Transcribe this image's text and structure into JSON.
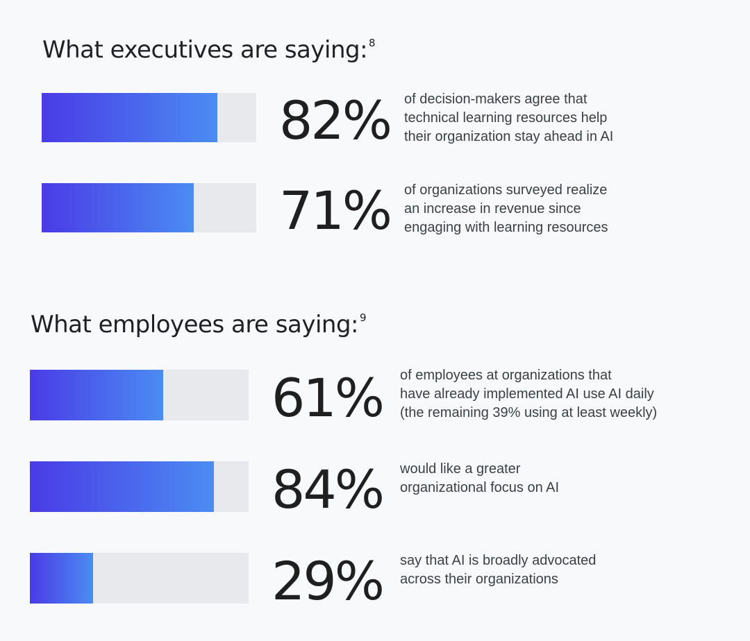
{
  "chart_data": [
    {
      "type": "bar",
      "title": "What executives are saying:",
      "title_footnote": "8",
      "xlim": [
        0,
        100
      ],
      "categories": [
        "82%",
        "71%"
      ],
      "values": [
        82,
        71
      ],
      "value_labels": [
        "82%",
        "71%"
      ],
      "descriptions": [
        [
          "of decision-makers agree that",
          "technical learning resources help",
          "their organization stay ahead in AI"
        ],
        [
          "of organizations surveyed realize",
          "an increase in revenue since",
          "engaging with learning resources"
        ]
      ],
      "colors": {
        "fill_start": "#4a3be6",
        "fill_end": "#4b8cf2",
        "track": "#e8e9ec"
      }
    },
    {
      "type": "bar",
      "title": "What employees are saying:",
      "title_footnote": "9",
      "xlim": [
        0,
        100
      ],
      "categories": [
        "61%",
        "84%",
        "29%"
      ],
      "values": [
        61,
        84,
        29
      ],
      "value_labels": [
        "61%",
        "84%",
        "29%"
      ],
      "descriptions": [
        [
          "of employees at organizations that",
          "have already implemented AI use AI daily",
          "(the remaining 39% using at least weekly)"
        ],
        [
          "would like a greater",
          "organizational focus on AI"
        ],
        [
          "say that AI is broadly advocated",
          "across their organizations"
        ]
      ],
      "colors": {
        "fill_start": "#4a3be6",
        "fill_end": "#4b8cf2",
        "track": "#e8e9ec"
      }
    }
  ]
}
